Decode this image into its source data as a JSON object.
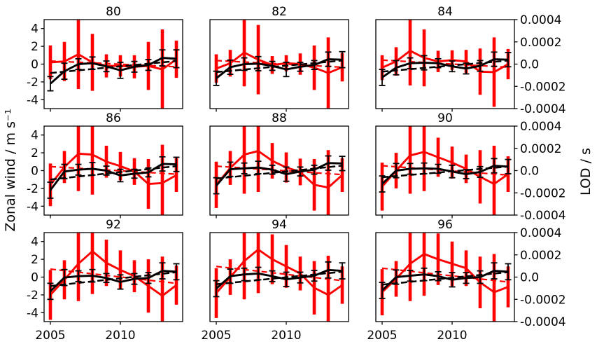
{
  "figure": {
    "left_axis_label": "Zonal wind / m s⁻¹",
    "right_axis_label": "LOD / s",
    "colors": {
      "wind": "#000000",
      "lod": "#ff0000",
      "background": "#ffffff",
      "frame": "#000000"
    }
  },
  "chart_data": {
    "type": "line",
    "layout": {
      "rows": 3,
      "cols": 3,
      "grid": false,
      "legend": false,
      "note": "3x3 grid of subplots sharing axes; solid lines with error bars, dashed linear trends"
    },
    "x": [
      2005,
      2006,
      2007,
      2008,
      2009,
      2010,
      2011,
      2012,
      2013,
      2014
    ],
    "x_ticks": [
      2005,
      2010
    ],
    "x_tick_labels": [
      "2005",
      "2010"
    ],
    "wind_axis": {
      "side": "left",
      "label": "Zonal wind / m s⁻¹",
      "range": [
        -5,
        5
      ],
      "ticks": [
        4,
        2,
        0,
        -2,
        -4
      ],
      "tick_labels": [
        "4",
        "2",
        "0",
        "-2",
        "-4"
      ]
    },
    "lod_axis": {
      "side": "right",
      "label": "LOD / s",
      "range": [
        -0.0004,
        0.0004
      ],
      "ticks": [
        0.0004,
        0.0002,
        0.0,
        -0.0002,
        -0.0004
      ],
      "tick_labels": [
        "0.0004",
        "0.0002",
        "0.0",
        "-0.0002",
        "-0.0004"
      ]
    },
    "subplots": [
      {
        "title": "80",
        "wind": {
          "values": [
            -2.2,
            -0.8,
            0.0,
            0.1,
            -0.25,
            -0.7,
            -0.3,
            -0.1,
            0.7,
            0.6
          ],
          "err": [
            0.8,
            0.9,
            0.6,
            0.7,
            0.6,
            0.9,
            0.6,
            0.6,
            0.9,
            1.0
          ],
          "trend": [
            -1.0,
            0.35
          ]
        },
        "lod": {
          "values": [
            1.6e-05,
            2.4e-05,
            8.8e-05,
            1.6e-05,
            -1.6e-05,
            -1.6e-05,
            -2.4e-05,
            -1.6e-05,
            -4.8e-05,
            4.4e-05
          ],
          "err": [
            0.000152,
            0.000176,
            0.000312,
            0.000256,
            0.000104,
            9.6e-05,
            0.000104,
            0.000216,
            0.00036,
            0.000168
          ],
          "trend": [
            2.8e-05,
            -2.4e-05
          ]
        }
      },
      {
        "title": "82",
        "wind": {
          "values": [
            -1.6,
            -0.35,
            0.0,
            0.05,
            -0.2,
            -0.6,
            -0.3,
            -0.1,
            0.55,
            0.5
          ],
          "err": [
            0.8,
            0.8,
            0.7,
            0.8,
            0.5,
            0.8,
            0.5,
            0.5,
            0.8,
            0.9
          ],
          "trend": [
            -0.9,
            0.4
          ]
        },
        "lod": {
          "values": [
            -4e-05,
            8e-06,
            0.000104,
            4e-05,
            -8e-06,
            8e-06,
            0.0,
            -3.2e-05,
            -8e-05,
            -2.8e-05
          ],
          "err": [
            0.000128,
            0.00012,
            0.000304,
            0.000312,
            8e-05,
            7.2e-05,
            9.6e-05,
            0.0002,
            0.00032,
            0.000128
          ],
          "trend": [
            3.2e-05,
            -2.8e-05
          ]
        }
      },
      {
        "title": "84",
        "wind": {
          "values": [
            -1.5,
            -0.4,
            0.1,
            0.15,
            0.1,
            -0.25,
            -0.5,
            -0.2,
            0.55,
            0.5
          ],
          "err": [
            0.9,
            0.8,
            0.6,
            0.8,
            0.5,
            0.6,
            0.6,
            0.6,
            0.8,
            0.8
          ],
          "trend": [
            -0.85,
            0.4
          ]
        },
        "lod": {
          "values": [
            -3.2e-05,
            2.4e-05,
            0.00012,
            5.6e-05,
            2.4e-05,
            3.6e-05,
            2.4e-05,
            -6.8e-05,
            -7.2e-05,
            0.0
          ],
          "err": [
            0.000112,
            0.000128,
            0.000312,
            0.000256,
            9.6e-05,
            8.8e-05,
            0.000104,
            0.000208,
            0.000312,
            0.000136
          ],
          "trend": [
            3.6e-05,
            -2.8e-05
          ]
        }
      },
      {
        "title": "86",
        "wind": {
          "values": [
            -2.2,
            -0.1,
            0.1,
            0.2,
            0.0,
            -0.55,
            -0.35,
            -0.2,
            0.75,
            0.7
          ],
          "err": [
            0.9,
            0.8,
            0.6,
            0.7,
            0.5,
            0.7,
            0.5,
            0.5,
            0.8,
            0.8
          ],
          "trend": [
            -1.0,
            0.5
          ]
        },
        "lod": {
          "values": [
            -0.000128,
            3.2e-05,
            0.000152,
            0.000144,
            8e-05,
            4e-05,
            -8e-06,
            -0.00012,
            -0.000112,
            -4e-05
          ],
          "err": [
            0.000192,
            0.000144,
            0.000336,
            0.00036,
            0.000144,
            0.000128,
            0.00012,
            0.000224,
            0.000344,
            0.000152
          ],
          "trend": [
            3.6e-05,
            -3.2e-05
          ]
        }
      },
      {
        "title": "88",
        "wind": {
          "values": [
            -1.7,
            0.15,
            0.25,
            0.35,
            0.1,
            -0.4,
            -0.1,
            0.1,
            0.85,
            0.8
          ],
          "err": [
            0.9,
            0.8,
            0.6,
            0.7,
            0.5,
            0.8,
            0.5,
            0.5,
            0.8,
            0.8
          ],
          "trend": [
            -0.9,
            0.55
          ]
        },
        "lod": {
          "values": [
            -0.000128,
            2.4e-05,
            0.000144,
            0.000176,
            8.8e-05,
            2.8e-05,
            -1.2e-05,
            -0.000128,
            -0.000152,
            -4e-05
          ],
          "err": [
            0.000208,
            0.000152,
            0.000352,
            0.000368,
            0.00016,
            0.000136,
            0.00012,
            0.000232,
            0.000336,
            0.000152
          ],
          "trend": [
            4e-05,
            -3.6e-05
          ]
        }
      },
      {
        "title": "90",
        "wind": {
          "values": [
            -1.5,
            0.0,
            0.2,
            0.25,
            0.2,
            -0.1,
            -0.4,
            -0.15,
            0.55,
            0.45
          ],
          "err": [
            0.9,
            0.8,
            0.6,
            0.6,
            0.5,
            0.7,
            0.5,
            0.6,
            0.8,
            0.8
          ],
          "trend": [
            -0.75,
            0.45
          ]
        },
        "lod": {
          "values": [
            -0.000144,
            0.0,
            0.000136,
            0.000168,
            0.00012,
            7.2e-05,
            1.6e-05,
            -5.6e-05,
            -0.00012,
            -3.2e-05
          ],
          "err": [
            0.000216,
            0.00016,
            0.000344,
            0.000352,
            0.000176,
            0.000144,
            0.000128,
            0.00024,
            0.000344,
            0.00016
          ],
          "trend": [
            4.4e-05,
            -4e-05
          ]
        }
      },
      {
        "title": "92",
        "wind": {
          "values": [
            -1.6,
            -0.05,
            0.1,
            0.15,
            -0.1,
            -0.55,
            -0.2,
            -0.1,
            0.7,
            0.6
          ],
          "err": [
            0.9,
            0.9,
            0.6,
            0.7,
            0.5,
            0.8,
            0.6,
            0.6,
            0.9,
            0.9
          ],
          "trend": [
            -1.0,
            0.55
          ]
        },
        "lod": {
          "values": [
            -0.00016,
            -2.4e-05,
            0.00012,
            0.000232,
            0.000128,
            6.4e-05,
            8e-06,
            -8e-05,
            -0.000168,
            -7.2e-05
          ],
          "err": [
            0.000224,
            0.000176,
            0.000336,
            0.000384,
            0.000208,
            0.000176,
            0.000144,
            0.00024,
            0.000352,
            0.000176
          ],
          "trend": [
            7.2e-05,
            -5.6e-05
          ]
        }
      },
      {
        "title": "94",
        "wind": {
          "values": [
            -1.3,
            0.1,
            0.3,
            0.4,
            0.1,
            -0.25,
            -0.05,
            0.15,
            0.8,
            0.7
          ],
          "err": [
            0.9,
            0.8,
            0.7,
            0.7,
            0.6,
            0.8,
            0.6,
            0.6,
            0.9,
            0.9
          ],
          "trend": [
            -0.8,
            0.6
          ]
        },
        "lod": {
          "values": [
            -0.000144,
            0.0,
            0.000144,
            0.000248,
            0.00016,
            9.6e-05,
            3.2e-05,
            -9.6e-05,
            -0.00016,
            -7.2e-05
          ],
          "err": [
            0.000224,
            0.00016,
            0.000344,
            0.000392,
            0.000224,
            0.000192,
            0.000152,
            0.00024,
            0.000352,
            0.000168
          ],
          "trend": [
            9.6e-05,
            -3.2e-05
          ]
        }
      },
      {
        "title": "96",
        "wind": {
          "values": [
            -1.5,
            0.0,
            0.15,
            0.3,
            0.1,
            -0.3,
            -0.1,
            0.0,
            0.7,
            0.6
          ],
          "err": [
            0.9,
            0.8,
            0.6,
            0.7,
            0.5,
            0.8,
            0.6,
            0.7,
            0.9,
            0.9
          ],
          "trend": [
            -0.85,
            0.55
          ]
        },
        "lod": {
          "values": [
            -0.000136,
            -1.6e-05,
            0.00012,
            0.000208,
            0.00016,
            0.00012,
            8e-05,
            -4.8e-05,
            -0.000136,
            -8.8e-05
          ],
          "err": [
            0.000208,
            0.00016,
            0.000336,
            0.000376,
            0.000232,
            0.0002,
            0.00016,
            0.000232,
            0.000344,
            0.000184
          ],
          "trend": [
            8e-05,
            -4.4e-05
          ]
        }
      }
    ]
  }
}
